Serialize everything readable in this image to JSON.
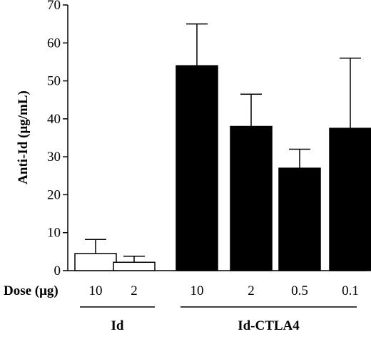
{
  "chart_data": {
    "type": "bar",
    "title": "",
    "ylabel": "Anti-Id (μg/mL)",
    "ylim": [
      0,
      70
    ],
    "yticks": [
      0,
      10,
      20,
      30,
      40,
      50,
      60,
      70
    ],
    "dose_title": "Dose (μg)",
    "categories": [
      "10",
      "2",
      "10",
      "2",
      "0.5",
      "0.1"
    ],
    "values": [
      4.5,
      2.2,
      54,
      38,
      27,
      37.5
    ],
    "errors": [
      3.7,
      1.6,
      11,
      8.5,
      5,
      18.5
    ],
    "bar_styles": [
      "open",
      "open",
      "filled",
      "filled",
      "filled",
      "filled"
    ],
    "groups": [
      {
        "label": "Id",
        "bars": [
          0,
          1
        ]
      },
      {
        "label": "Id-CTLA4",
        "bars": [
          2,
          3,
          4,
          5
        ]
      }
    ],
    "grid": false,
    "colors": {
      "fill": "#000000",
      "open": "#ffffff",
      "stroke": "#000000"
    }
  }
}
